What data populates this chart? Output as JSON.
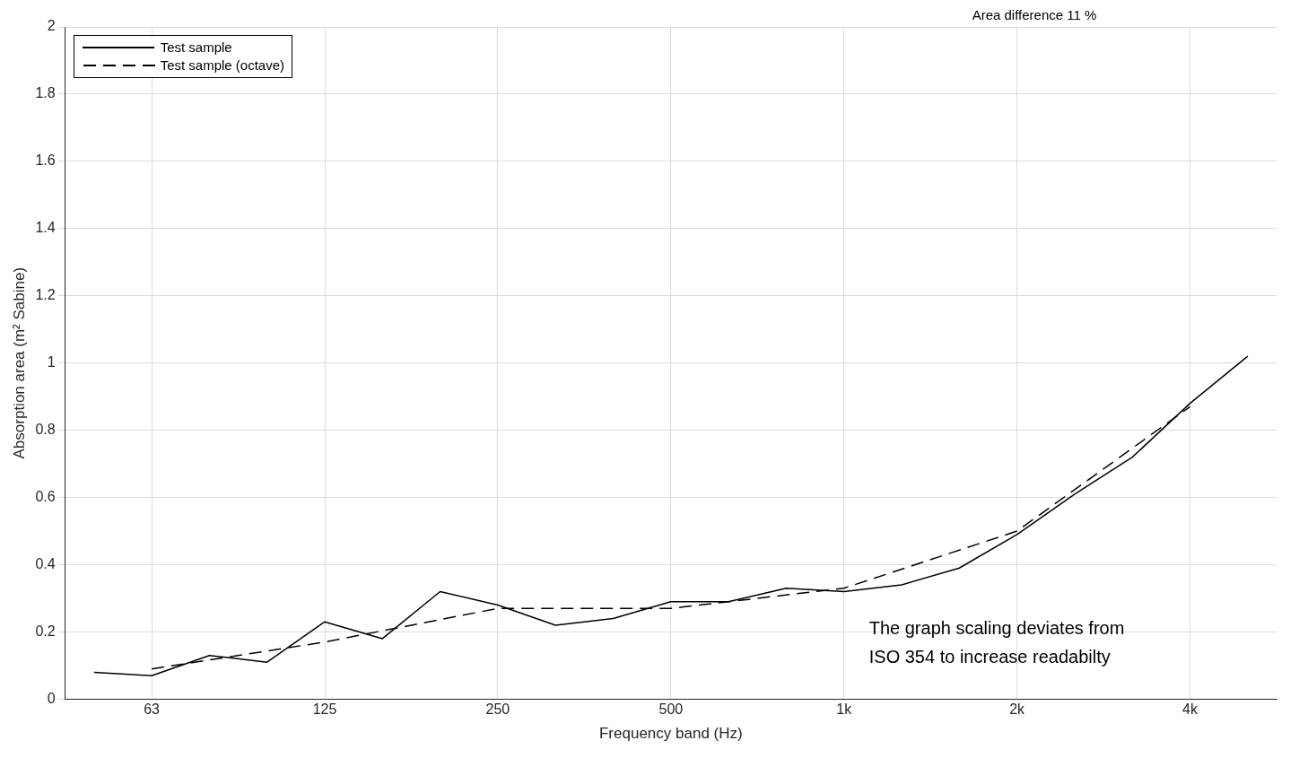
{
  "chart_data": {
    "type": "line",
    "xlabel": "Frequency band (Hz)",
    "ylabel": "Absorption area (m² Sabine)",
    "categories": [
      null,
      "63",
      null,
      null,
      "125",
      null,
      null,
      "250",
      null,
      null,
      "500",
      null,
      null,
      "1k",
      null,
      null,
      "2k",
      null,
      null,
      "4k",
      null
    ],
    "series": [
      {
        "name": "Test sample",
        "color": "#000000",
        "line_style": "solid",
        "values": [
          0.08,
          0.07,
          0.13,
          0.11,
          0.23,
          0.18,
          0.32,
          0.28,
          0.22,
          0.24,
          0.29,
          0.29,
          0.33,
          0.32,
          0.34,
          0.39,
          0.49,
          0.61,
          0.72,
          0.88,
          1.02
        ]
      },
      {
        "name": "Test sample (octave)",
        "color": "#000000",
        "line_style": "dashed",
        "values": [
          null,
          0.09,
          null,
          null,
          0.17,
          null,
          null,
          0.27,
          null,
          null,
          0.27,
          null,
          null,
          0.33,
          null,
          null,
          0.5,
          null,
          null,
          0.87,
          null
        ]
      }
    ],
    "ylim": [
      0,
      2
    ],
    "yticks": [
      0,
      0.2,
      0.4,
      0.6,
      0.8,
      1,
      1.2,
      1.4,
      1.6,
      1.8,
      2
    ],
    "grid": true,
    "legend": "top left",
    "marker": "none",
    "annotations": [
      "Area difference 11 %",
      "The graph scaling deviates from\nISO 354 to increase readabilty"
    ]
  }
}
